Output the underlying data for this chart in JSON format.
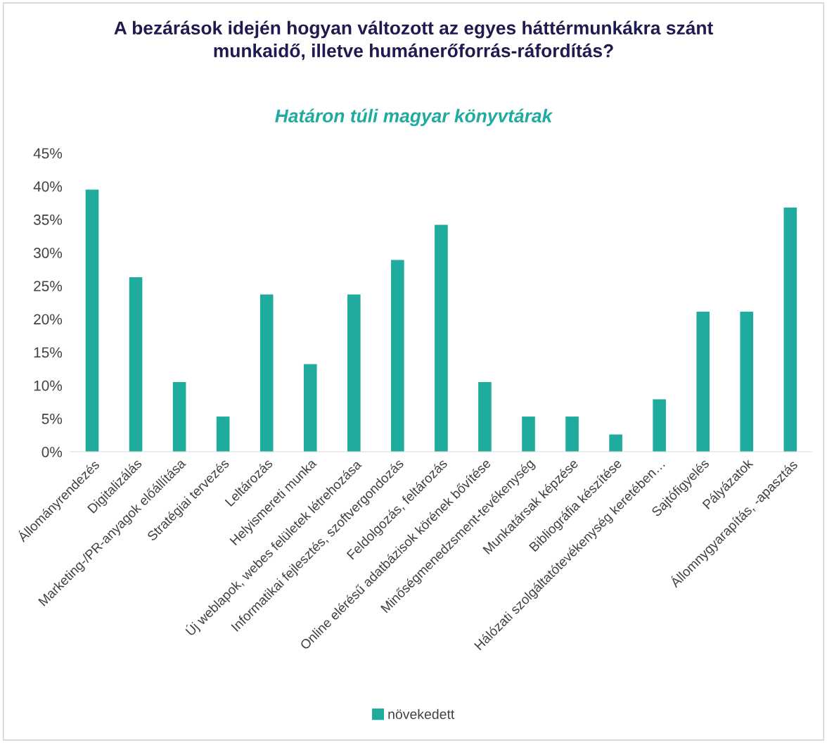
{
  "chart_data": {
    "type": "bar",
    "title": "A bezárások idején hogyan változott az egyes háttérmunkákra szánt\nmunkaidő, illetve humánerőforrás-ráfordítás?",
    "subtitle": "Határon túli magyar könyvtárak",
    "categories": [
      "Állományrendezés",
      "Digitalizálás",
      "Marketing-/PR-anyagok előállítása",
      "Stratégiai tervezés",
      "Leltározás",
      "Helyismereti munka",
      "Új weblapok, webes felületek létrehozása",
      "Informatikai fejlesztés, szoftvergondozás",
      "Feldolgozás, feltározás",
      "Online elérésű adatbázisok körének bővítése",
      "Minőségmenedzsment-tevékenység",
      "Munkatársak képzése",
      "Bibliográfia készítése",
      "Hálózati szolgáltatótevékenység keretében…",
      "Sajtófigyelés",
      "Pályázatok",
      "Állomnygyarapítás, -apasztás"
    ],
    "series": [
      {
        "name": "növekedett",
        "color": "#20ab9f",
        "values": [
          39.5,
          26.3,
          10.5,
          5.3,
          23.7,
          13.2,
          23.7,
          28.9,
          34.2,
          10.5,
          5.3,
          5.3,
          2.6,
          7.9,
          21.1,
          21.1,
          36.8
        ]
      }
    ],
    "ylim": [
      0,
      45
    ],
    "yticks": [
      {
        "value": 0,
        "label": "0%"
      },
      {
        "value": 5,
        "label": "5%"
      },
      {
        "value": 10,
        "label": "10%"
      },
      {
        "value": 15,
        "label": "15%"
      },
      {
        "value": 20,
        "label": "20%"
      },
      {
        "value": 25,
        "label": "25%"
      },
      {
        "value": 30,
        "label": "30%"
      },
      {
        "value": 35,
        "label": "35%"
      },
      {
        "value": 40,
        "label": "40%"
      },
      {
        "value": 45,
        "label": "45%"
      }
    ],
    "grid": false,
    "legend": "bottom"
  }
}
